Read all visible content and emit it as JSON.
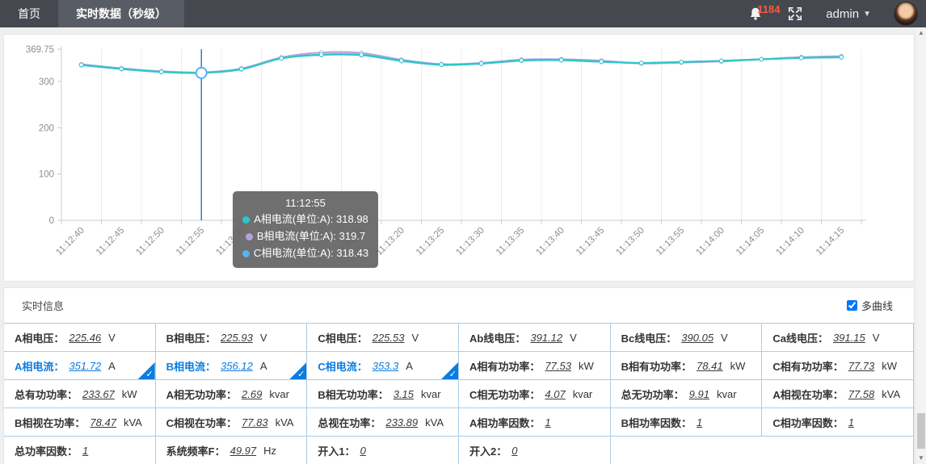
{
  "navbar": {
    "tabs": [
      {
        "label": "首页",
        "active": false
      },
      {
        "label": "实时数据（秒级）",
        "active": true
      }
    ],
    "notification_count": "1184",
    "user": "admin"
  },
  "chart_data": {
    "type": "line",
    "categories": [
      "11:12:40",
      "11:12:45",
      "11:12:50",
      "11:12:55",
      "11:13:00",
      "11:13:05",
      "11:13:10",
      "11:13:15",
      "11:13:20",
      "11:13:25",
      "11:13:30",
      "11:13:35",
      "11:13:40",
      "11:13:45",
      "11:13:50",
      "11:13:55",
      "11:14:00",
      "11:14:05",
      "11:14:10",
      "11:14:15"
    ],
    "series": [
      {
        "name": "A相电流(单位:A)",
        "color": "#2ec7c9",
        "values": [
          336,
          327.5,
          321,
          318.98,
          327,
          350,
          358,
          357.5,
          345,
          336.5,
          339,
          345.5,
          346.5,
          343,
          340,
          342,
          344.5,
          348,
          351,
          352.5
        ]
      },
      {
        "name": "B相电流(单位:A)",
        "color": "#b6a2de",
        "values": [
          337,
          328.5,
          322,
          319.7,
          328,
          352,
          362.5,
          361.5,
          347,
          337.5,
          340,
          347,
          348,
          345,
          339,
          341,
          343.5,
          348,
          352.5,
          354.5
        ]
      },
      {
        "name": "C相电流(单位:A)",
        "color": "#5ab1ef",
        "values": [
          335.5,
          327,
          320.5,
          318.43,
          326.5,
          350,
          357.5,
          357,
          344.5,
          336,
          338.5,
          345,
          346,
          342.5,
          340,
          342,
          344.5,
          348,
          351,
          352.5
        ]
      }
    ],
    "ylim": [
      0,
      369.75
    ],
    "yticks": [
      "0",
      "100",
      "200",
      "300",
      "369.75"
    ],
    "grid": "vertical",
    "highlight_index": 3,
    "marker_line_color": "#1f78c1",
    "tooltip": {
      "title": "11:12:55",
      "items": [
        {
          "name": "A相电流(单位:A)",
          "value": "318.98",
          "color": "#2ec7c9"
        },
        {
          "name": "B相电流(单位:A)",
          "value": "319.7",
          "color": "#b6a2de"
        },
        {
          "name": "C相电流(单位:A)",
          "value": "318.43",
          "color": "#5ab1ef"
        }
      ]
    }
  },
  "panel": {
    "title": "实时信息",
    "multi_curve": {
      "label": "多曲线",
      "checked": true
    }
  },
  "table": {
    "rows": [
      [
        {
          "label": "A相电压：",
          "value": "225.46",
          "unit": "V"
        },
        {
          "label": "B相电压：",
          "value": "225.93",
          "unit": "V"
        },
        {
          "label": "C相电压：",
          "value": "225.53",
          "unit": "V"
        },
        {
          "label": "Ab线电压：",
          "value": "391.12",
          "unit": "V"
        },
        {
          "label": "Bc线电压：",
          "value": "390.05",
          "unit": "V"
        },
        {
          "label": "Ca线电压：",
          "value": "391.15",
          "unit": "V"
        }
      ],
      [
        {
          "label": "A相电流：",
          "value": "351.72",
          "unit": "A",
          "selected": true
        },
        {
          "label": "B相电流：",
          "value": "356.12",
          "unit": "A",
          "selected": true
        },
        {
          "label": "C相电流：",
          "value": "353.3",
          "unit": "A",
          "selected": true
        },
        {
          "label": "A相有功功率：",
          "value": "77.53",
          "unit": "kW"
        },
        {
          "label": "B相有功功率：",
          "value": "78.41",
          "unit": "kW"
        },
        {
          "label": "C相有功功率：",
          "value": "77.73",
          "unit": "kW"
        }
      ],
      [
        {
          "label": "总有功功率：",
          "value": "233.67",
          "unit": "kW"
        },
        {
          "label": "A相无功功率：",
          "value": "2.69",
          "unit": "kvar"
        },
        {
          "label": "B相无功功率：",
          "value": "3.15",
          "unit": "kvar"
        },
        {
          "label": "C相无功功率：",
          "value": "4.07",
          "unit": "kvar"
        },
        {
          "label": "总无功功率：",
          "value": "9.91",
          "unit": "kvar"
        },
        {
          "label": "A相视在功率：",
          "value": "77.58",
          "unit": "kVA"
        }
      ],
      [
        {
          "label": "B相视在功率：",
          "value": "78.47",
          "unit": "kVA"
        },
        {
          "label": "C相视在功率：",
          "value": "77.83",
          "unit": "kVA"
        },
        {
          "label": "总视在功率：",
          "value": "233.89",
          "unit": "kVA"
        },
        {
          "label": "A相功率因数：",
          "value": "1",
          "unit": ""
        },
        {
          "label": "B相功率因数：",
          "value": "1",
          "unit": ""
        },
        {
          "label": "C相功率因数：",
          "value": "1",
          "unit": ""
        }
      ],
      [
        {
          "label": "总功率因数：",
          "value": "1",
          "unit": ""
        },
        {
          "label": "系统频率F：",
          "value": "49.97",
          "unit": "Hz"
        },
        {
          "label": "开入1：",
          "value": "0",
          "unit": ""
        },
        {
          "label": "开入2：",
          "value": "0",
          "unit": ""
        },
        {
          "label": "",
          "value": "",
          "unit": "",
          "empty": true,
          "span": 2
        }
      ]
    ]
  },
  "scrollbar": {
    "up_glyph": "▲",
    "down_glyph": "▼"
  }
}
